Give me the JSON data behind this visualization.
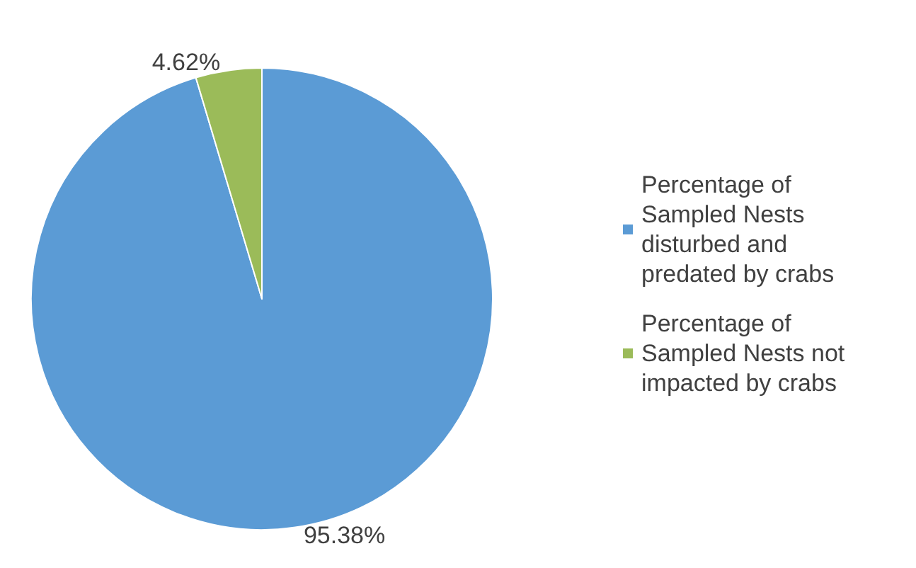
{
  "chart_data": {
    "type": "pie",
    "categories": [
      "Percentage of Sampled Nests disturbed and predated by crabs",
      "Percentage of Sampled Nests not impacted by crabs"
    ],
    "values": [
      95.38,
      4.62
    ],
    "colors": [
      "#5b9bd5",
      "#9bbb59"
    ],
    "value_labels": [
      "95.38%",
      "4.62%"
    ],
    "legend": "right"
  }
}
